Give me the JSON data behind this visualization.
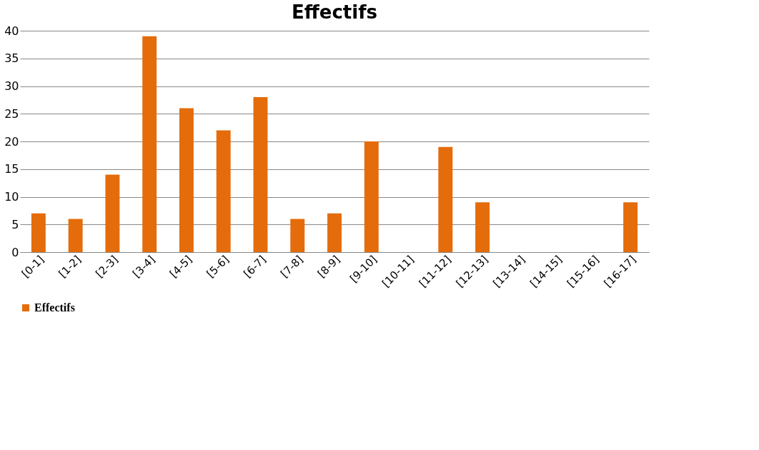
{
  "chart_data": {
    "type": "bar",
    "title": "Effectifs",
    "categories": [
      "[0-1]",
      "[1-2]",
      "[2-3]",
      "[3-4]",
      "[4-5]",
      "[5-6]",
      "[6-7]",
      "[7-8]",
      "[8-9]",
      "[9-10]",
      "[10-11]",
      "[11-12]",
      "[12-13]",
      "[13-14]",
      "[14-15]",
      "[15-16]",
      "[16-17]"
    ],
    "series": [
      {
        "name": "Effectifs",
        "color": "#e46c0a",
        "values": [
          7,
          6,
          14,
          39,
          26,
          22,
          28,
          6,
          7,
          20,
          0,
          19,
          9,
          0,
          0,
          0,
          9
        ]
      }
    ],
    "ylim": [
      0,
      40
    ],
    "yticks": [
      0,
      5,
      10,
      15,
      20,
      25,
      30,
      35,
      40
    ],
    "grid": "y",
    "legend": "bottom"
  }
}
